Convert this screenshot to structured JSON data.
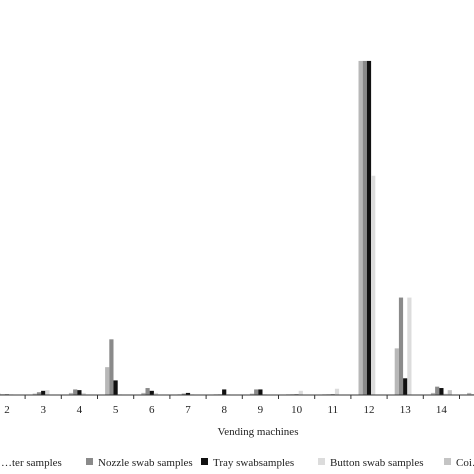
{
  "chart_data": {
    "type": "bar",
    "xlabel": "Vending machines",
    "categories": [
      "2",
      "3",
      "4",
      "5",
      "6",
      "7",
      "8",
      "9",
      "10",
      "11",
      "12",
      "13",
      "14",
      ""
    ],
    "series": [
      {
        "name": "…ter samples",
        "color": "#b8b8b8",
        "values": [
          0.4,
          0.4,
          0.6,
          8.0,
          0.6,
          0.2,
          0.2,
          0.4,
          0.2,
          0.2,
          96.0,
          13.4,
          0.6,
          0.6
        ]
      },
      {
        "name": "Nozzle swab samples",
        "color": "#8a8a8a",
        "values": [
          0.2,
          0.8,
          1.6,
          16.0,
          2.0,
          0.4,
          0.2,
          1.6,
          0.2,
          0.2,
          96.0,
          28.0,
          2.4,
          0.2
        ]
      },
      {
        "name": "Tray swabsamples",
        "color": "#111111",
        "values": [
          0.2,
          1.2,
          1.4,
          4.2,
          1.2,
          0.6,
          1.6,
          1.6,
          0.2,
          0.2,
          96.0,
          4.8,
          2.0,
          0.2
        ]
      },
      {
        "name": "Button swab samples",
        "color": "#dcdcdc",
        "values": [
          0.2,
          1.4,
          0.6,
          0.2,
          0.6,
          0.2,
          0.2,
          0.2,
          1.2,
          1.8,
          63.0,
          28.0,
          0.4,
          0.2
        ]
      },
      {
        "name": "Coi…",
        "color": "#c4c4c4",
        "values": [
          0.0,
          0.0,
          0.0,
          0.0,
          0.0,
          0.0,
          0.0,
          0.0,
          0.0,
          0.0,
          0.0,
          0.0,
          1.4,
          0.0
        ]
      }
    ],
    "ylim": [
      0,
      100
    ],
    "grid": false,
    "legend_position": "bottom"
  }
}
